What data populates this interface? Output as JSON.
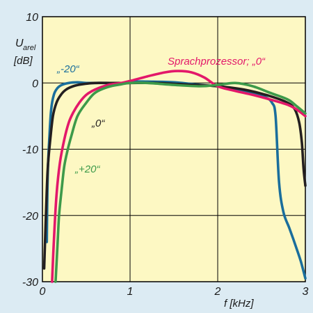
{
  "chart_data": {
    "type": "line",
    "title": "",
    "ylabel_main": "U",
    "ylabel_sub": "arel",
    "yunit": "[dB]",
    "xlabel": "f [kHz]",
    "xlim": [
      0,
      3
    ],
    "ylim": [
      -30,
      10
    ],
    "xticks": [
      0,
      1,
      2,
      3
    ],
    "xtick_labels": [
      "0",
      "1",
      "2",
      "3"
    ],
    "yticks": [
      -30,
      -20,
      -10,
      0,
      10
    ],
    "ytick_labels": [
      "-30",
      "-20",
      "-10",
      "0",
      "10"
    ],
    "grid": true,
    "colors": {
      "plot_background": "#fdf8c3",
      "figure_background": "#dcebf3",
      "grid": "#000000"
    },
    "series": [
      {
        "name": "„-20“",
        "color": "#1a6e9c",
        "label_color": "#1a6e9c",
        "x": [
          0.05,
          0.06,
          0.08,
          0.1,
          0.13,
          0.17,
          0.22,
          0.3,
          0.4,
          0.5,
          0.7,
          0.9,
          1.0,
          1.2,
          1.5,
          1.8,
          2.0,
          2.2,
          2.4,
          2.55,
          2.62,
          2.66,
          2.7,
          2.75,
          2.82,
          2.9,
          2.95,
          3.0
        ],
        "y": [
          -24,
          -14,
          -8,
          -4,
          -1.8,
          -0.8,
          -0.3,
          0,
          0.1,
          0,
          0,
          -0.1,
          0.2,
          0.2,
          0.1,
          -0.3,
          -0.5,
          -0.9,
          -1.5,
          -2.2,
          -3,
          -5,
          -15,
          -19.5,
          -22,
          -25,
          -27,
          -29.5
        ]
      },
      {
        "name": "„0“",
        "color": "#231f20",
        "label_color": "#231f20",
        "x": [
          0.02,
          0.04,
          0.06,
          0.09,
          0.12,
          0.16,
          0.21,
          0.27,
          0.35,
          0.45,
          0.6,
          0.8,
          1.0,
          1.3,
          1.6,
          2.0,
          2.3,
          2.6,
          2.8,
          2.88,
          2.93,
          2.96,
          2.98,
          3.0
        ],
        "y": [
          -28,
          -20,
          -13,
          -8.5,
          -5,
          -3,
          -1.8,
          -1,
          -0.5,
          -0.2,
          0,
          0,
          0,
          0,
          -0.2,
          -0.5,
          -1,
          -2,
          -3,
          -4,
          -6,
          -9,
          -13,
          -15.5
        ]
      },
      {
        "name": "Sprachprozessor; „0“",
        "color": "#e3186a",
        "label_color": "#e3186a",
        "x": [
          0.11,
          0.13,
          0.16,
          0.2,
          0.25,
          0.3,
          0.35,
          0.42,
          0.5,
          0.6,
          0.75,
          0.9,
          1.0,
          1.2,
          1.4,
          1.55,
          1.7,
          1.85,
          2.0,
          2.2,
          2.4,
          2.6,
          2.8,
          2.9,
          3.0
        ],
        "y": [
          -30,
          -24,
          -17,
          -12,
          -8.5,
          -6,
          -4.5,
          -3,
          -1.8,
          -1,
          -0.3,
          0,
          0.3,
          1,
          1.6,
          1.8,
          1.6,
          0.8,
          -0.5,
          -1.2,
          -1.8,
          -2.5,
          -3.3,
          -4,
          -5
        ]
      },
      {
        "name": "„+20“",
        "color": "#3d9a4a",
        "label_color": "#3d9a4a",
        "x": [
          0.15,
          0.17,
          0.19,
          0.22,
          0.25,
          0.29,
          0.33,
          0.4,
          0.5,
          0.6,
          0.75,
          0.9,
          1.0,
          1.2,
          1.5,
          1.8,
          2.0,
          2.2,
          2.4,
          2.6,
          2.8,
          2.9,
          3.0
        ],
        "y": [
          -30,
          -25,
          -20,
          -16,
          -12.5,
          -10,
          -8,
          -5,
          -3,
          -1.5,
          -0.6,
          -0.2,
          0,
          0,
          -0.3,
          -0.5,
          -0.3,
          0,
          -0.5,
          -1.5,
          -2.5,
          -3.5,
          -4.6
        ]
      }
    ]
  }
}
